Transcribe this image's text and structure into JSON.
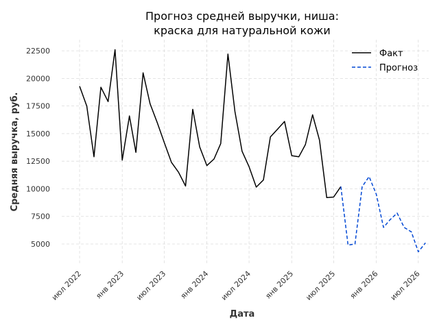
{
  "chart_data": {
    "type": "line",
    "title": [
      "Прогноз средней выручки, ниша:",
      "краска для натуральной кожи"
    ],
    "xlabel": "Дата",
    "ylabel": "Средняя выручка, руб.",
    "xlim": [
      "2022-04-15",
      "2026-08-15"
    ],
    "ylim": [
      3200,
      23500
    ],
    "x_ticks": [
      {
        "date": "2022-07-01",
        "label": "июл 2022"
      },
      {
        "date": "2023-01-01",
        "label": "янв 2023"
      },
      {
        "date": "2023-07-01",
        "label": "июл 2023"
      },
      {
        "date": "2024-01-01",
        "label": "янв 2024"
      },
      {
        "date": "2024-07-01",
        "label": "июл 2024"
      },
      {
        "date": "2025-01-01",
        "label": "янв 2025"
      },
      {
        "date": "2025-07-01",
        "label": "июл 2025"
      },
      {
        "date": "2026-01-01",
        "label": "янв 2026"
      },
      {
        "date": "2026-07-01",
        "label": "июл 2026"
      }
    ],
    "y_ticks": [
      5000,
      7500,
      10000,
      12500,
      15000,
      17500,
      20000,
      22500
    ],
    "grid": true,
    "legend_position": "top-right",
    "series": [
      {
        "name": "Факт",
        "color": "#000000",
        "style": "solid",
        "points": [
          [
            "2022-07-01",
            19300
          ],
          [
            "2022-08-01",
            17500
          ],
          [
            "2022-09-01",
            12900
          ],
          [
            "2022-10-01",
            19200
          ],
          [
            "2022-11-01",
            17900
          ],
          [
            "2022-12-01",
            22600
          ],
          [
            "2023-01-01",
            12600
          ],
          [
            "2023-02-01",
            16600
          ],
          [
            "2023-03-01",
            13300
          ],
          [
            "2023-04-01",
            20500
          ],
          [
            "2023-05-01",
            17700
          ],
          [
            "2023-06-01",
            16000
          ],
          [
            "2023-07-01",
            14200
          ],
          [
            "2023-08-01",
            12400
          ],
          [
            "2023-09-01",
            11500
          ],
          [
            "2023-10-01",
            10250
          ],
          [
            "2023-11-01",
            17200
          ],
          [
            "2023-12-01",
            13800
          ],
          [
            "2024-01-01",
            12100
          ],
          [
            "2024-02-01",
            12700
          ],
          [
            "2024-03-01",
            14100
          ],
          [
            "2024-04-01",
            22200
          ],
          [
            "2024-05-01",
            17000
          ],
          [
            "2024-06-01",
            13400
          ],
          [
            "2024-07-01",
            12000
          ],
          [
            "2024-08-01",
            10150
          ],
          [
            "2024-09-01",
            10800
          ],
          [
            "2024-10-01",
            14700
          ],
          [
            "2024-11-01",
            15400
          ],
          [
            "2024-12-01",
            16100
          ],
          [
            "2025-01-01",
            13000
          ],
          [
            "2025-02-01",
            12900
          ],
          [
            "2025-03-01",
            14000
          ],
          [
            "2025-04-01",
            16700
          ],
          [
            "2025-05-01",
            14400
          ],
          [
            "2025-06-01",
            9200
          ],
          [
            "2025-07-01",
            9250
          ],
          [
            "2025-08-01",
            10200
          ]
        ]
      },
      {
        "name": "Прогноз",
        "color": "#0047d4",
        "style": "dashed",
        "points": [
          [
            "2025-08-01",
            10200
          ],
          [
            "2025-09-01",
            4900
          ],
          [
            "2025-10-01",
            5000
          ],
          [
            "2025-11-01",
            10200
          ],
          [
            "2025-12-01",
            11100
          ],
          [
            "2026-01-01",
            9500
          ],
          [
            "2026-02-01",
            6500
          ],
          [
            "2026-03-01",
            7200
          ],
          [
            "2026-04-01",
            7800
          ],
          [
            "2026-05-01",
            6500
          ],
          [
            "2026-06-01",
            6100
          ],
          [
            "2026-07-01",
            4300
          ],
          [
            "2026-08-01",
            5100
          ]
        ]
      }
    ]
  }
}
